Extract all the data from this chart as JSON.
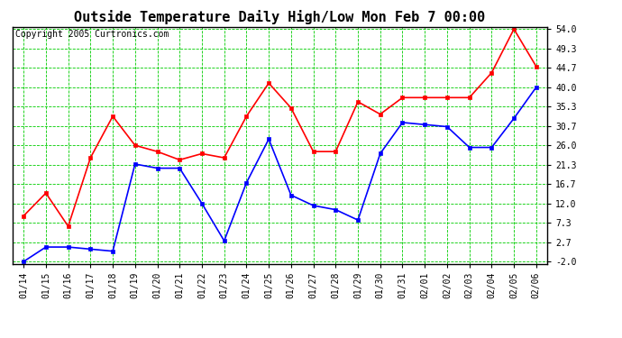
{
  "title": "Outside Temperature Daily High/Low Mon Feb 7 00:00",
  "copyright": "Copyright 2005 Curtronics.com",
  "x_labels": [
    "01/14",
    "01/15",
    "01/16",
    "01/17",
    "01/18",
    "01/19",
    "01/20",
    "01/21",
    "01/22",
    "01/23",
    "01/24",
    "01/25",
    "01/26",
    "01/27",
    "01/28",
    "01/29",
    "01/30",
    "01/31",
    "02/01",
    "02/02",
    "02/03",
    "02/04",
    "02/05",
    "02/06"
  ],
  "high_values": [
    9.0,
    14.5,
    6.5,
    23.0,
    33.0,
    26.0,
    24.5,
    22.5,
    24.0,
    23.0,
    33.0,
    41.0,
    35.0,
    24.5,
    24.5,
    36.5,
    33.5,
    37.5,
    37.5,
    37.5,
    37.5,
    43.5,
    54.0,
    45.0
  ],
  "low_values": [
    -2.0,
    1.5,
    1.5,
    1.0,
    0.5,
    21.5,
    20.5,
    20.5,
    12.0,
    3.0,
    17.0,
    27.5,
    14.0,
    11.5,
    10.5,
    8.0,
    24.0,
    31.5,
    31.0,
    30.5,
    25.5,
    25.5,
    32.5,
    40.0
  ],
  "high_color": "#ff0000",
  "low_color": "#0000ff",
  "bg_color": "#ffffff",
  "plot_bg_color": "#ffffff",
  "grid_color": "#00cc00",
  "marker": "s",
  "marker_size": 3,
  "ylim_min": -2.0,
  "ylim_max": 54.0,
  "yticks": [
    -2.0,
    2.7,
    7.3,
    12.0,
    16.7,
    21.3,
    26.0,
    30.7,
    35.3,
    40.0,
    44.7,
    49.3,
    54.0
  ],
  "title_fontsize": 11,
  "tick_fontsize": 7,
  "copyright_fontsize": 7,
  "line_width": 1.2
}
